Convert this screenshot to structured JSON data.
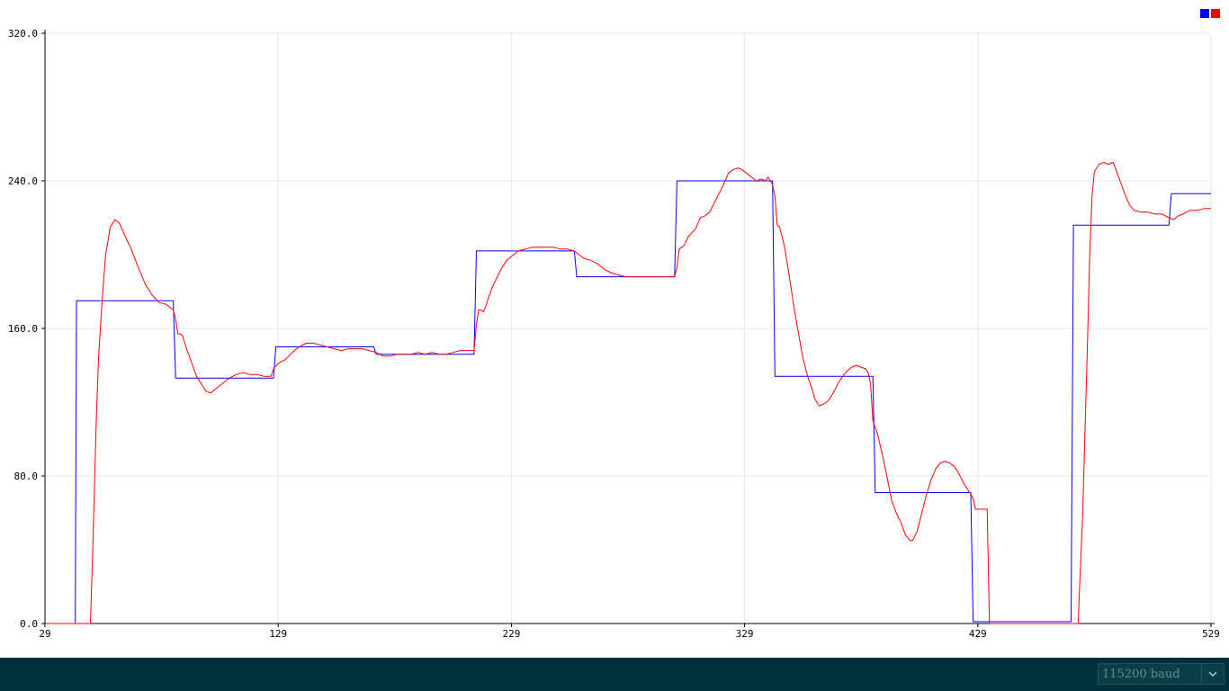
{
  "window": {
    "title": ""
  },
  "colors": {
    "series_setpoint": "#0000ff",
    "series_input": "#ff0000",
    "grid": "#e8e8e8",
    "axis": "#000000",
    "bottom_bar": "#00313a"
  },
  "legend": {
    "swatches": [
      "#0000ff",
      "#ff0000"
    ]
  },
  "baud": {
    "selected": "115200 baud",
    "chevron_icon": "chevron-down-icon"
  },
  "chart_data": {
    "type": "line",
    "title": "",
    "xlabel": "",
    "ylabel": "",
    "xlim": [
      29,
      529
    ],
    "ylim": [
      0,
      320
    ],
    "x_ticks": [
      29,
      129,
      229,
      329,
      429,
      529
    ],
    "y_ticks": [
      0.0,
      80.0,
      160.0,
      240.0,
      320.0
    ],
    "x_tick_labels": [
      "29",
      "129",
      "229",
      "329",
      "429",
      "529"
    ],
    "y_tick_labels": [
      "0.0",
      "80.0",
      "160.0",
      "240.0",
      "320.0"
    ],
    "grid": true,
    "legend_position": "top-right",
    "series": [
      {
        "color": "#0000ff",
        "points": [
          [
            29,
            0
          ],
          [
            42,
            0
          ],
          [
            42.5,
            175
          ],
          [
            84,
            175
          ],
          [
            85,
            133
          ],
          [
            127,
            133
          ],
          [
            128,
            150
          ],
          [
            170,
            150
          ],
          [
            171,
            146
          ],
          [
            213,
            146
          ],
          [
            214,
            202
          ],
          [
            256,
            202
          ],
          [
            257,
            188
          ],
          [
            299,
            188
          ],
          [
            300,
            240
          ],
          [
            341,
            240
          ],
          [
            342,
            134
          ],
          [
            384,
            134
          ],
          [
            385,
            71
          ],
          [
            426,
            71
          ],
          [
            427,
            1
          ],
          [
            469,
            1
          ],
          [
            470,
            216
          ],
          [
            511,
            216
          ],
          [
            512,
            233
          ],
          [
            529,
            233
          ]
        ]
      },
      {
        "color": "#ff0000",
        "points": [
          [
            29,
            0
          ],
          [
            48.5,
            0
          ],
          [
            49.5,
            40
          ],
          [
            51,
            110
          ],
          [
            52,
            145
          ],
          [
            53.5,
            175
          ],
          [
            55,
            200
          ],
          [
            57,
            215
          ],
          [
            59,
            219
          ],
          [
            61,
            217
          ],
          [
            63,
            211
          ],
          [
            66,
            203
          ],
          [
            69,
            193
          ],
          [
            72,
            184
          ],
          [
            75,
            178
          ],
          [
            78,
            174
          ],
          [
            81,
            173
          ],
          [
            84,
            170
          ],
          [
            85,
            165
          ],
          [
            86,
            157
          ],
          [
            87,
            157
          ],
          [
            88,
            156
          ],
          [
            90,
            148
          ],
          [
            92,
            141
          ],
          [
            94,
            134
          ],
          [
            96,
            130
          ],
          [
            98,
            126
          ],
          [
            100,
            125
          ],
          [
            102,
            127
          ],
          [
            105,
            130
          ],
          [
            108,
            133
          ],
          [
            111,
            135
          ],
          [
            114,
            136
          ],
          [
            117,
            135
          ],
          [
            120,
            135
          ],
          [
            123,
            134
          ],
          [
            126,
            134
          ],
          [
            127,
            138
          ],
          [
            129,
            141
          ],
          [
            132,
            143
          ],
          [
            135,
            147
          ],
          [
            138,
            150
          ],
          [
            141,
            152
          ],
          [
            144,
            152
          ],
          [
            147,
            151
          ],
          [
            150,
            150
          ],
          [
            153,
            149
          ],
          [
            156,
            148
          ],
          [
            159,
            149
          ],
          [
            162,
            149
          ],
          [
            165,
            149
          ],
          [
            168,
            148
          ],
          [
            171,
            147
          ],
          [
            174,
            145
          ],
          [
            177,
            145
          ],
          [
            180,
            146
          ],
          [
            183,
            146
          ],
          [
            186,
            146
          ],
          [
            189,
            147
          ],
          [
            192,
            146
          ],
          [
            195,
            147
          ],
          [
            198,
            146
          ],
          [
            201,
            146
          ],
          [
            204,
            147
          ],
          [
            207,
            148
          ],
          [
            210,
            148
          ],
          [
            213,
            148
          ],
          [
            214,
            162
          ],
          [
            215,
            170
          ],
          [
            216,
            170
          ],
          [
            217,
            169
          ],
          [
            218,
            172
          ],
          [
            219,
            176
          ],
          [
            221,
            183
          ],
          [
            223,
            188
          ],
          [
            225,
            193
          ],
          [
            227,
            197
          ],
          [
            229,
            199
          ],
          [
            232,
            202
          ],
          [
            235,
            203
          ],
          [
            238,
            204
          ],
          [
            241,
            204
          ],
          [
            244,
            204
          ],
          [
            247,
            204
          ],
          [
            250,
            203
          ],
          [
            253,
            203
          ],
          [
            256,
            202
          ],
          [
            258,
            200
          ],
          [
            260,
            198
          ],
          [
            263,
            197
          ],
          [
            266,
            195
          ],
          [
            269,
            192
          ],
          [
            272,
            190
          ],
          [
            275,
            189
          ],
          [
            278,
            188
          ],
          [
            281,
            188
          ],
          [
            284,
            188
          ],
          [
            287,
            188
          ],
          [
            290,
            188
          ],
          [
            293,
            188
          ],
          [
            296,
            188
          ],
          [
            299,
            188
          ],
          [
            300,
            193
          ],
          [
            301,
            203
          ],
          [
            303,
            205
          ],
          [
            305,
            210
          ],
          [
            308,
            214
          ],
          [
            310,
            220
          ],
          [
            312,
            221
          ],
          [
            314,
            223
          ],
          [
            316,
            228
          ],
          [
            318,
            233
          ],
          [
            320,
            238
          ],
          [
            321,
            241
          ],
          [
            322,
            244
          ],
          [
            323,
            245
          ],
          [
            324,
            246
          ],
          [
            326,
            247
          ],
          [
            328,
            246
          ],
          [
            330,
            244
          ],
          [
            332,
            242
          ],
          [
            334,
            240
          ],
          [
            336,
            241
          ],
          [
            338,
            240
          ],
          [
            339,
            242
          ],
          [
            340,
            240
          ],
          [
            341,
            238
          ],
          [
            342,
            232
          ],
          [
            343,
            216
          ],
          [
            344,
            215
          ],
          [
            346,
            205
          ],
          [
            348,
            190
          ],
          [
            350,
            173
          ],
          [
            352,
            158
          ],
          [
            354,
            144
          ],
          [
            356,
            134
          ],
          [
            358,
            127
          ],
          [
            359,
            122
          ],
          [
            361,
            118
          ],
          [
            363,
            119
          ],
          [
            365,
            121
          ],
          [
            367,
            125
          ],
          [
            369,
            130
          ],
          [
            371,
            134
          ],
          [
            373,
            137
          ],
          [
            375,
            139
          ],
          [
            377,
            140
          ],
          [
            379,
            139
          ],
          [
            381,
            138
          ],
          [
            382,
            136
          ],
          [
            383,
            130
          ],
          [
            384,
            110
          ],
          [
            386,
            103
          ],
          [
            388,
            92
          ],
          [
            390,
            80
          ],
          [
            392,
            67
          ],
          [
            394,
            60
          ],
          [
            396,
            55
          ],
          [
            398,
            48
          ],
          [
            400,
            45
          ],
          [
            401,
            45
          ],
          [
            403,
            50
          ],
          [
            405,
            60
          ],
          [
            407,
            70
          ],
          [
            409,
            78
          ],
          [
            411,
            84
          ],
          [
            413,
            87
          ],
          [
            415,
            88
          ],
          [
            417,
            87
          ],
          [
            419,
            85
          ],
          [
            421,
            81
          ],
          [
            423,
            76
          ],
          [
            425,
            72
          ],
          [
            427,
            68
          ],
          [
            428,
            62
          ],
          [
            433,
            62
          ],
          [
            434,
            0
          ],
          [
            468,
            0
          ],
          [
            472,
            0
          ],
          [
            474,
            60
          ],
          [
            476,
            150
          ],
          [
            477,
            200
          ],
          [
            478,
            232
          ],
          [
            479,
            245
          ],
          [
            481,
            249
          ],
          [
            483,
            250
          ],
          [
            485,
            249
          ],
          [
            487,
            250
          ],
          [
            488,
            247
          ],
          [
            490,
            240
          ],
          [
            492,
            233
          ],
          [
            494,
            227
          ],
          [
            496,
            224
          ],
          [
            499,
            223
          ],
          [
            502,
            223
          ],
          [
            505,
            222
          ],
          [
            508,
            222
          ],
          [
            511,
            220
          ],
          [
            513,
            219
          ],
          [
            515,
            221
          ],
          [
            517,
            222
          ],
          [
            520,
            224
          ],
          [
            523,
            224
          ],
          [
            526,
            225
          ],
          [
            529,
            225
          ]
        ]
      }
    ]
  }
}
